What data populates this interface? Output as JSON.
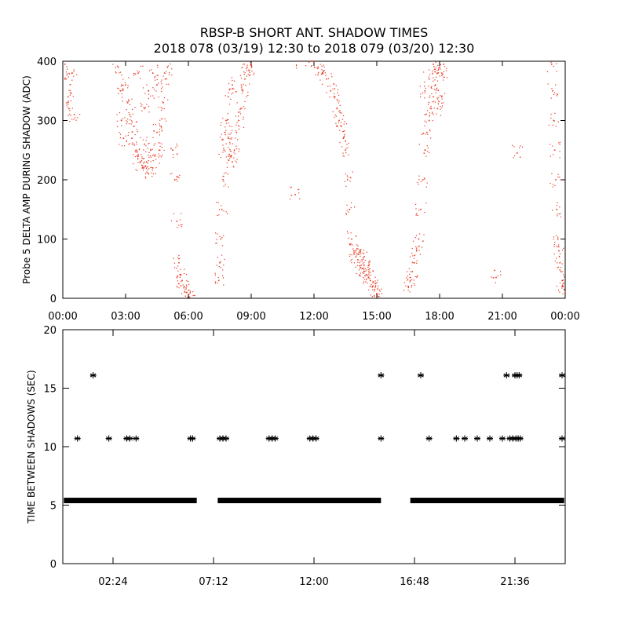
{
  "title": "RBSP-B SHORT ANT. SHADOW TIMES",
  "subtitle": "2018 078 (03/19) 12:30 to 2018 079 (03/20) 12:30",
  "chart_data": [
    {
      "type": "scatter",
      "ylabel": "Probe 5 DELTA AMP DURING SHADOW (ADC)",
      "xlabel": "",
      "xlim": [
        0,
        24
      ],
      "ylim": [
        0,
        400
      ],
      "xticks": [
        0,
        3,
        6,
        9,
        12,
        15,
        18,
        21,
        24
      ],
      "xtick_labels": [
        "00:00",
        "03:00",
        "06:00",
        "09:00",
        "12:00",
        "15:00",
        "18:00",
        "21:00",
        "00:00"
      ],
      "yticks": [
        0,
        100,
        200,
        300,
        400
      ],
      "ytick_labels": [
        "0",
        "100",
        "200",
        "300",
        "400"
      ],
      "marker": "dot",
      "color": "#e8341c",
      "series": [
        {
          "points": [
            [
              0.1,
              395
            ],
            [
              0.15,
              370
            ],
            [
              0.25,
              340
            ],
            [
              0.3,
              320
            ],
            [
              0.45,
              380
            ],
            [
              0.55,
              310
            ],
            [
              2.65,
              390
            ],
            [
              2.75,
              350
            ],
            [
              2.8,
              300
            ],
            [
              2.9,
              270
            ],
            [
              3.0,
              360
            ],
            [
              3.1,
              330
            ],
            [
              3.2,
              310
            ],
            [
              3.3,
              270
            ],
            [
              3.4,
              290
            ],
            [
              3.5,
              250
            ],
            [
              3.6,
              240
            ],
            [
              3.7,
              230
            ],
            [
              3.8,
              220
            ],
            [
              3.9,
              260
            ],
            [
              4.0,
              230
            ],
            [
              4.1,
              210
            ],
            [
              4.2,
              250
            ],
            [
              4.3,
              220
            ],
            [
              4.4,
              240
            ],
            [
              4.5,
              280
            ],
            [
              4.6,
              250
            ],
            [
              4.7,
              290
            ],
            [
              4.8,
              330
            ],
            [
              4.9,
              370
            ],
            [
              5.0,
              390
            ],
            [
              3.9,
              320
            ],
            [
              4.1,
              350
            ],
            [
              4.3,
              380
            ],
            [
              4.5,
              360
            ],
            [
              3.6,
              380
            ],
            [
              5.25,
              250
            ],
            [
              5.35,
              200
            ],
            [
              5.45,
              130
            ],
            [
              5.55,
              60
            ],
            [
              5.6,
              40
            ],
            [
              5.7,
              30
            ],
            [
              5.8,
              20
            ],
            [
              5.9,
              10
            ],
            [
              6.0,
              5
            ],
            [
              6.05,
              2
            ],
            [
              7.45,
              30
            ],
            [
              7.5,
              60
            ],
            [
              7.55,
              100
            ],
            [
              7.6,
              150
            ],
            [
              7.65,
              200
            ],
            [
              7.7,
              250
            ],
            [
              7.75,
              280
            ],
            [
              7.8,
              300
            ],
            [
              7.9,
              270
            ],
            [
              8.0,
              240
            ],
            [
              8.1,
              230
            ],
            [
              8.2,
              250
            ],
            [
              8.3,
              280
            ],
            [
              8.4,
              300
            ],
            [
              8.5,
              320
            ],
            [
              8.6,
              350
            ],
            [
              8.7,
              370
            ],
            [
              8.8,
              390
            ],
            [
              8.9,
              385
            ],
            [
              9.0,
              395
            ],
            [
              7.9,
              340
            ],
            [
              8.1,
              360
            ],
            [
              11.1,
              175
            ],
            [
              11.4,
              400
            ],
            [
              11.8,
              400
            ],
            [
              12.0,
              400
            ],
            [
              12.2,
              390
            ],
            [
              12.4,
              380
            ],
            [
              12.6,
              370
            ],
            [
              12.8,
              350
            ],
            [
              13.0,
              340
            ],
            [
              13.1,
              320
            ],
            [
              13.2,
              300
            ],
            [
              13.3,
              290
            ],
            [
              13.4,
              270
            ],
            [
              13.5,
              250
            ],
            [
              13.6,
              200
            ],
            [
              13.7,
              150
            ],
            [
              13.8,
              100
            ],
            [
              13.9,
              80
            ],
            [
              14.0,
              70
            ],
            [
              14.1,
              65
            ],
            [
              14.2,
              55
            ],
            [
              14.3,
              50
            ],
            [
              14.4,
              45
            ],
            [
              14.5,
              40
            ],
            [
              14.6,
              35
            ],
            [
              14.7,
              30
            ],
            [
              14.8,
              20
            ],
            [
              14.9,
              15
            ],
            [
              15.0,
              8
            ],
            [
              15.1,
              3
            ],
            [
              14.2,
              80
            ],
            [
              14.4,
              70
            ],
            [
              14.6,
              55
            ],
            [
              16.5,
              20
            ],
            [
              16.6,
              30
            ],
            [
              16.7,
              45
            ],
            [
              16.8,
              60
            ],
            [
              16.9,
              80
            ],
            [
              17.0,
              100
            ],
            [
              17.1,
              150
            ],
            [
              17.2,
              200
            ],
            [
              17.3,
              250
            ],
            [
              17.4,
              280
            ],
            [
              17.5,
              300
            ],
            [
              17.6,
              320
            ],
            [
              17.7,
              340
            ],
            [
              17.8,
              360
            ],
            [
              17.9,
              380
            ],
            [
              18.0,
              390
            ],
            [
              18.1,
              380
            ],
            [
              18.2,
              395
            ],
            [
              17.5,
              370
            ],
            [
              17.7,
              395
            ],
            [
              17.3,
              350
            ],
            [
              17.9,
              320
            ],
            [
              18.1,
              340
            ],
            [
              20.7,
              35
            ],
            [
              21.7,
              245
            ],
            [
              23.35,
              395
            ],
            [
              23.4,
              350
            ],
            [
              23.45,
              300
            ],
            [
              23.5,
              250
            ],
            [
              23.55,
              200
            ],
            [
              23.6,
              150
            ],
            [
              23.65,
              100
            ],
            [
              23.7,
              80
            ],
            [
              23.75,
              60
            ],
            [
              23.8,
              45
            ],
            [
              23.85,
              30
            ],
            [
              23.9,
              20
            ],
            [
              23.95,
              15
            ],
            [
              24.0,
              10
            ]
          ]
        }
      ]
    },
    {
      "type": "scatter",
      "ylabel": "TIME BETWEEN SHADOWS (SEC)",
      "xlabel": "",
      "xlim": [
        0,
        24
      ],
      "ylim": [
        0,
        20
      ],
      "xticks": [
        2.4,
        7.2,
        12.0,
        16.8,
        21.6
      ],
      "xtick_labels": [
        "02:24",
        "07:12",
        "12:00",
        "16:48",
        "21:36"
      ],
      "yticks": [
        0,
        5,
        10,
        15,
        20
      ],
      "ytick_labels": [
        "0",
        "5",
        "10",
        "15",
        "20"
      ],
      "marker": "asterisk",
      "color": "#000000",
      "baseline": {
        "y": 5.4,
        "segments": [
          [
            0.05,
            6.4
          ],
          [
            7.4,
            15.2
          ],
          [
            16.6,
            23.95
          ]
        ]
      },
      "series": [
        {
          "points": [
            [
              0.7,
              10.7
            ],
            [
              1.45,
              16.1
            ],
            [
              2.2,
              10.7
            ],
            [
              3.05,
              10.7
            ],
            [
              3.2,
              10.7
            ],
            [
              3.5,
              10.7
            ],
            [
              6.1,
              10.7
            ],
            [
              6.2,
              10.7
            ],
            [
              7.5,
              10.7
            ],
            [
              7.65,
              10.7
            ],
            [
              7.8,
              10.7
            ],
            [
              9.85,
              10.7
            ],
            [
              10.0,
              10.7
            ],
            [
              10.15,
              10.7
            ],
            [
              11.8,
              10.7
            ],
            [
              11.95,
              10.7
            ],
            [
              12.1,
              10.7
            ],
            [
              15.2,
              16.1
            ],
            [
              15.2,
              10.7
            ],
            [
              17.1,
              16.1
            ],
            [
              17.5,
              10.7
            ],
            [
              18.8,
              10.7
            ],
            [
              19.2,
              10.7
            ],
            [
              19.8,
              10.7
            ],
            [
              20.4,
              10.7
            ],
            [
              21.0,
              10.7
            ],
            [
              21.2,
              16.1
            ],
            [
              21.35,
              10.7
            ],
            [
              21.5,
              10.7
            ],
            [
              21.6,
              16.1
            ],
            [
              21.7,
              16.1
            ],
            [
              21.8,
              16.1
            ],
            [
              21.65,
              10.7
            ],
            [
              21.75,
              10.7
            ],
            [
              21.85,
              10.7
            ],
            [
              23.85,
              16.1
            ],
            [
              23.85,
              10.7
            ]
          ]
        }
      ]
    }
  ]
}
